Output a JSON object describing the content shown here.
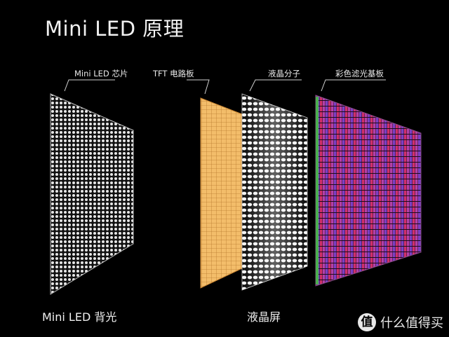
{
  "title": "Mini LED 原理",
  "labels": {
    "chip": "Mini LED 芯片",
    "tft": "TFT 电路板",
    "lc": "液晶分子",
    "filter": "彩色滤光基板"
  },
  "captions": {
    "backlight": "Mini LED 背光",
    "lcd": "液晶屏"
  },
  "watermark": {
    "logo": "值",
    "text": "什么值得买"
  },
  "colors": {
    "background": "#000000",
    "led": "#e6e6e6",
    "tft": "#f0b25a",
    "tft_grid": "#c98532",
    "lc": "#f4f4f4",
    "filter_red": "#d0306a",
    "filter_green": "#4caf50",
    "filter_blue": "#7d3fc4"
  }
}
